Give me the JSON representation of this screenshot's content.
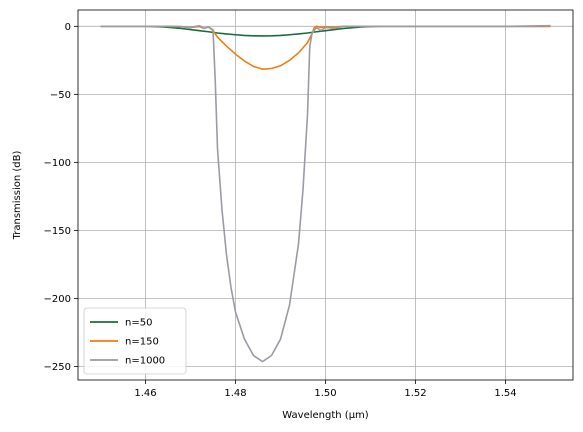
{
  "chart_data": {
    "type": "line",
    "xlabel": "Wavelength (μm)",
    "ylabel": "Transmission (dB)",
    "xlim": [
      1.445,
      1.555
    ],
    "ylim": [
      -260,
      12
    ],
    "xticks": [
      1.46,
      1.48,
      1.5,
      1.52,
      1.54
    ],
    "xtick_labels": [
      "1.46",
      "1.48",
      "1.50",
      "1.52",
      "1.54"
    ],
    "yticks": [
      0,
      -50,
      -100,
      -150,
      -200,
      -250
    ],
    "ytick_labels": [
      "0",
      "−50",
      "−100",
      "−150",
      "−200",
      "−250"
    ],
    "grid": true,
    "legend_position": "lower-left",
    "series": [
      {
        "name": "n=50",
        "color": "#1b6b3a",
        "points": [
          [
            1.45,
            0
          ],
          [
            1.455,
            0
          ],
          [
            1.46,
            0
          ],
          [
            1.462,
            -0.2
          ],
          [
            1.464,
            -0.5
          ],
          [
            1.466,
            -1.0
          ],
          [
            1.468,
            -1.6
          ],
          [
            1.47,
            -2.4
          ],
          [
            1.472,
            -3.2
          ],
          [
            1.474,
            -4.0
          ],
          [
            1.476,
            -4.9
          ],
          [
            1.478,
            -5.6
          ],
          [
            1.48,
            -6.2
          ],
          [
            1.482,
            -6.7
          ],
          [
            1.484,
            -7.0
          ],
          [
            1.486,
            -7.1
          ],
          [
            1.488,
            -7.0
          ],
          [
            1.49,
            -6.7
          ],
          [
            1.492,
            -6.2
          ],
          [
            1.494,
            -5.6
          ],
          [
            1.496,
            -4.9
          ],
          [
            1.498,
            -4.0
          ],
          [
            1.5,
            -3.2
          ],
          [
            1.502,
            -2.4
          ],
          [
            1.504,
            -1.6
          ],
          [
            1.506,
            -1.0
          ],
          [
            1.508,
            -0.5
          ],
          [
            1.51,
            -0.2
          ],
          [
            1.512,
            0
          ],
          [
            1.52,
            0
          ],
          [
            1.53,
            0
          ],
          [
            1.54,
            0
          ],
          [
            1.55,
            0
          ]
        ]
      },
      {
        "name": "n=150",
        "color": "#f07d14",
        "points": [
          [
            1.45,
            0
          ],
          [
            1.46,
            0
          ],
          [
            1.465,
            0
          ],
          [
            1.468,
            -0.3
          ],
          [
            1.47,
            -0.8
          ],
          [
            1.472,
            -0.2
          ],
          [
            1.473,
            -1.5
          ],
          [
            1.474,
            -0.5
          ],
          [
            1.475,
            -3.0
          ],
          [
            1.476,
            -8.0
          ],
          [
            1.478,
            -14.5
          ],
          [
            1.48,
            -20.5
          ],
          [
            1.482,
            -25.5
          ],
          [
            1.484,
            -29.5
          ],
          [
            1.486,
            -31.5
          ],
          [
            1.488,
            -31.0
          ],
          [
            1.49,
            -29.0
          ],
          [
            1.492,
            -25.0
          ],
          [
            1.494,
            -19.5
          ],
          [
            1.496,
            -12.0
          ],
          [
            1.497,
            -5.5
          ],
          [
            1.4975,
            -1.0
          ],
          [
            1.498,
            0
          ],
          [
            1.499,
            -0.8
          ],
          [
            1.5,
            -0.3
          ],
          [
            1.502,
            -0.6
          ],
          [
            1.504,
            0
          ],
          [
            1.51,
            0
          ],
          [
            1.52,
            0
          ],
          [
            1.53,
            0
          ],
          [
            1.54,
            0
          ],
          [
            1.55,
            0
          ]
        ]
      },
      {
        "name": "n=1000",
        "color": "#9a9aa8",
        "points": [
          [
            1.45,
            0
          ],
          [
            1.46,
            0
          ],
          [
            1.465,
            0
          ],
          [
            1.468,
            -0.3
          ],
          [
            1.47,
            -0.8
          ],
          [
            1.472,
            0.5
          ],
          [
            1.473,
            -1.5
          ],
          [
            1.474,
            -0.5
          ],
          [
            1.475,
            -2.5
          ],
          [
            1.4755,
            -40.0
          ],
          [
            1.476,
            -90.0
          ],
          [
            1.477,
            -135.0
          ],
          [
            1.478,
            -168.0
          ],
          [
            1.479,
            -192.0
          ],
          [
            1.48,
            -210.0
          ],
          [
            1.482,
            -230.0
          ],
          [
            1.484,
            -242.0
          ],
          [
            1.486,
            -246.5
          ],
          [
            1.488,
            -242.0
          ],
          [
            1.49,
            -230.0
          ],
          [
            1.492,
            -205.0
          ],
          [
            1.494,
            -160.0
          ],
          [
            1.495,
            -120.0
          ],
          [
            1.496,
            -65.0
          ],
          [
            1.4965,
            -15.0
          ],
          [
            1.497,
            -5.0
          ],
          [
            1.498,
            -1.0
          ],
          [
            1.499,
            -3.0
          ],
          [
            1.5,
            -0.8
          ],
          [
            1.502,
            -1.5
          ],
          [
            1.504,
            0
          ],
          [
            1.51,
            0
          ],
          [
            1.52,
            0
          ],
          [
            1.53,
            0
          ],
          [
            1.54,
            0
          ],
          [
            1.55,
            0.5
          ]
        ]
      }
    ]
  }
}
